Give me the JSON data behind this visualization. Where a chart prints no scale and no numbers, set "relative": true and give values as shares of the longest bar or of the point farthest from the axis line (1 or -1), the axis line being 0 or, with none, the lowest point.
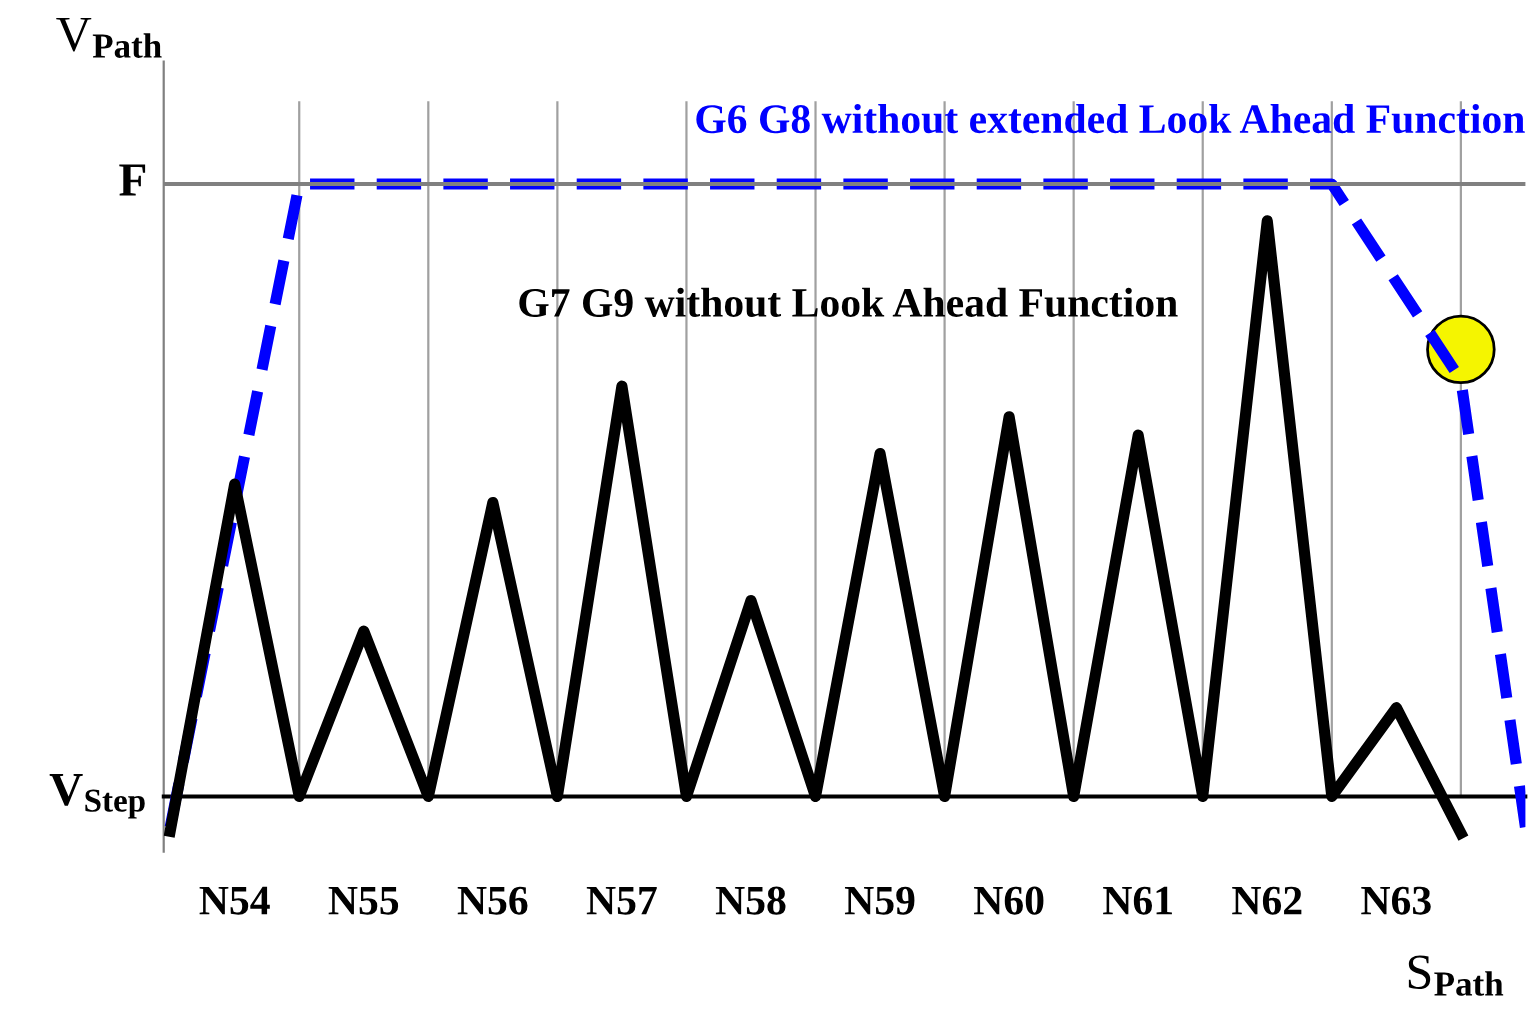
{
  "chart_data": {
    "type": "line",
    "relative": true,
    "xlabel": "S$_{Path}$",
    "ylabel": "V$_{Path}$",
    "categories": [
      null,
      "N54",
      null,
      "N55",
      null,
      "N56",
      null,
      "N57",
      null,
      "N58",
      null,
      "N59",
      null,
      "N60",
      null,
      "N61",
      null,
      "N62",
      null,
      "N63",
      null,
      null
    ],
    "series": [
      {
        "name": "G6 G8 without extended Look Ahead Function",
        "color": "#0000ff",
        "line_style": "dashed",
        "values": [
          -0.05,
          null,
          1,
          null,
          null,
          null,
          null,
          null,
          null,
          null,
          null,
          null,
          null,
          null,
          null,
          null,
          null,
          null,
          1,
          null,
          0.68,
          -0.05
        ]
      },
      {
        "name": "G7 G9 without Look Ahead Function",
        "color": "#000000",
        "line_style": "solid",
        "values": [
          -0.057,
          0.51,
          0,
          0.27,
          0,
          0.48,
          0,
          0.67,
          0,
          0.32,
          0,
          0.56,
          0,
          0.62,
          0,
          0.59,
          0,
          0.94,
          0,
          0.145,
          -0.06,
          null
        ]
      }
    ],
    "ref_lines": [
      {
        "axis": "y",
        "value": 1,
        "label": "F",
        "color": "#808080"
      }
    ],
    "annotations": [
      "V$_{Step}$"
    ],
    "legend": false,
    "marker": "none",
    "grid": "x"
  }
}
